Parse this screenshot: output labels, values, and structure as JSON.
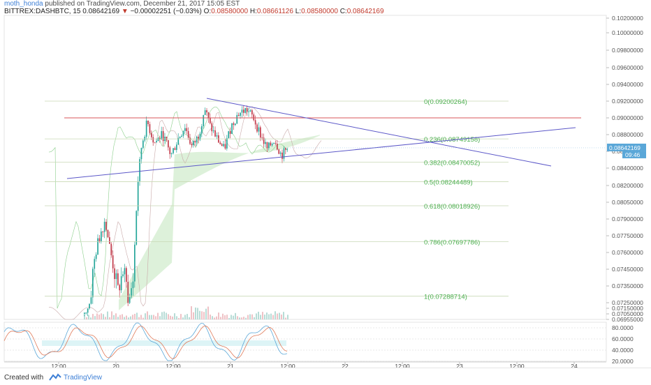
{
  "header": {
    "username": "moth_honda",
    "published_text": " published on TradingView.com, December 21, 2017 15:05 EST",
    "symbol": "BITTREX:DASHBTC, 15",
    "last_price": "0.08642169",
    "change_arrow": "▼",
    "change": "−0.00002251 (−0.03%)",
    "o_label": "O:",
    "o_value": "0.08580000",
    "h_label": "H:",
    "h_value": "0.08661126",
    "l_label": "L:",
    "l_value": "0.08580000",
    "c_label": "C:",
    "c_value": "0.08642169"
  },
  "footer": {
    "created_with": "Created with",
    "brand": "TradingView",
    "logo_icon": "tradingview-logo-icon"
  },
  "colors": {
    "bull": "#26a69a",
    "bear": "#c23a4a",
    "trendline": "#5b57c8",
    "resistance": "#d9545a",
    "fib_line": "#c9d9b5",
    "fib_text": "#4caf50",
    "cloud": "#d9efd6",
    "stoch_k": "#5aa7d8",
    "stoch_d": "#e07b5a",
    "price_label_bg": "#5aa7d8"
  },
  "chart_data": {
    "type": "candlestick",
    "symbol": "BITTREX:DASHBTC",
    "interval": "15",
    "price_axis_ticks": [
      "0.10200000",
      "0.10000000",
      "0.09800000",
      "0.09600000",
      "0.09400000",
      "0.09200000",
      "0.09000000",
      "0.08800000",
      "0.08600000",
      "0.08400000",
      "0.08200000",
      "0.08050000",
      "0.07900000",
      "0.07750000",
      "0.07600000",
      "0.07450000",
      "0.07350000",
      "0.07250000",
      "0.07150000",
      "0.07050000",
      "0.06955000"
    ],
    "time_axis_ticks": [
      "12:00",
      "20",
      "12:00",
      "21",
      "12:00",
      "22",
      "12:00",
      "23",
      "12:00",
      "24"
    ],
    "current_price_label": "0.08642169",
    "countdown_label": "09:46",
    "indicator_axis_ticks": [
      "80.0000",
      "60.0000",
      "40.0000",
      "20.0000"
    ],
    "fib_levels": [
      {
        "ratio": "0",
        "label": "0(0.09200264)",
        "price": 0.09200264
      },
      {
        "ratio": "0.236",
        "label": "0.236(0.08749158)",
        "price": 0.08749158
      },
      {
        "ratio": "0.382",
        "label": "0.382(0.08470052)",
        "price": 0.08470052
      },
      {
        "ratio": "0.5",
        "label": "0.5(0.08244489)",
        "price": 0.08244489
      },
      {
        "ratio": "0.618",
        "label": "0.618(0.08018926)",
        "price": 0.08018926
      },
      {
        "ratio": "0.786",
        "label": "0.786(0.07697786)",
        "price": 0.07697786
      },
      {
        "ratio": "1",
        "label": "1(0.07288714)",
        "price": 0.07288714
      }
    ],
    "resistance_level": 0.09
  }
}
